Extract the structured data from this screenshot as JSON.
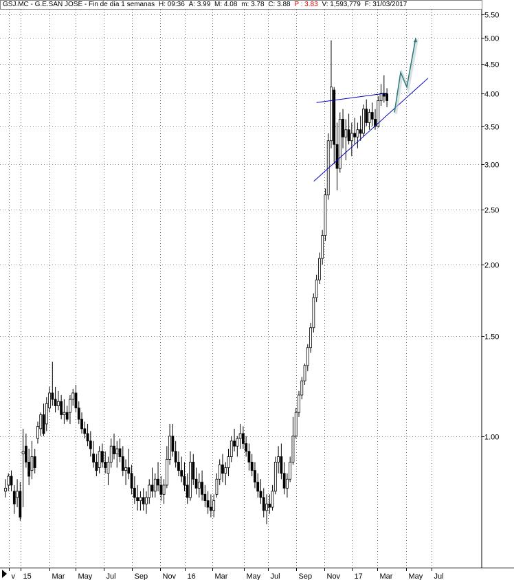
{
  "header": {
    "title": "GSJ.MC - G.E.SAN JOSE - Fin de día 1 semanas",
    "h": "H: 09:36",
    "a": "A: 3.99",
    "m_high": "M: 4.08",
    "m_low": "m: 3.78",
    "c": "C: 3.88",
    "p": "P : 3.83",
    "v": "V: 1,593,779",
    "f": "F: 31/03/2017"
  },
  "colors": {
    "up": "#ffffff",
    "down": "#000000",
    "trendline": "#0000c0",
    "projection": "#2a7a7a",
    "grid": "#000000"
  },
  "chart_data": {
    "type": "candlestick",
    "title": "GSJ.MC - G.E.SAN JOSE - Fin de día 1 semanas",
    "y_scale": "log",
    "y_ticks": [
      1.0,
      1.5,
      2.0,
      2.5,
      3.0,
      3.5,
      4.0,
      4.5,
      5.0,
      5.5
    ],
    "y_tick_labels": [
      "1.00",
      "1.50",
      "2.00",
      "2.50",
      "3.00",
      "3.50",
      "4.00",
      "4.50",
      "5.00",
      "5.50"
    ],
    "x_tick_labels": [
      "v",
      "15",
      "Mar",
      "May",
      "Jul",
      "Sep",
      "Nov",
      "16",
      "Mar",
      "May",
      "Jul",
      "Sep",
      "Nov",
      "17",
      "Mar",
      "May",
      "Jul"
    ],
    "last": {
      "open": 3.99,
      "high": 4.08,
      "low": 3.78,
      "close": 3.88
    },
    "trendlines": [
      {
        "name": "resistance",
        "from": [
          "2016-11",
          3.85
        ],
        "to": [
          "2017-03",
          4.0
        ]
      },
      {
        "name": "support",
        "from": [
          "2016-11",
          2.8
        ],
        "to": [
          "2017-06",
          4.25
        ]
      }
    ],
    "projection": [
      3.7,
      4.35,
      4.1,
      5.0
    ],
    "candles": [
      [
        0.8,
        0.84,
        0.78,
        0.81
      ],
      [
        0.82,
        0.86,
        0.8,
        0.85
      ],
      [
        0.85,
        0.87,
        0.8,
        0.82
      ],
      [
        0.8,
        0.82,
        0.73,
        0.76
      ],
      [
        0.78,
        0.84,
        0.75,
        0.8
      ],
      [
        0.8,
        0.83,
        0.71,
        0.72
      ],
      [
        0.93,
        1.03,
        0.75,
        0.94
      ],
      [
        0.96,
        1.01,
        0.88,
        0.9
      ],
      [
        0.9,
        0.95,
        0.82,
        0.85
      ],
      [
        0.87,
        0.98,
        0.84,
        0.92
      ],
      [
        0.92,
        0.95,
        0.86,
        0.88
      ],
      [
        0.99,
        1.06,
        0.97,
        1.04
      ],
      [
        1.03,
        1.1,
        1.0,
        1.09
      ],
      [
        1.09,
        1.14,
        1.0,
        1.01
      ],
      [
        1.05,
        1.17,
        1.02,
        1.14
      ],
      [
        1.12,
        1.22,
        1.1,
        1.19
      ],
      [
        1.19,
        1.35,
        1.13,
        1.16
      ],
      [
        1.16,
        1.22,
        1.1,
        1.13
      ],
      [
        1.13,
        1.2,
        1.11,
        1.15
      ],
      [
        1.15,
        1.18,
        1.07,
        1.09
      ],
      [
        1.09,
        1.16,
        1.05,
        1.1
      ],
      [
        1.1,
        1.13,
        1.06,
        1.07
      ],
      [
        1.1,
        1.18,
        1.05,
        1.16
      ],
      [
        1.16,
        1.21,
        1.13,
        1.19
      ],
      [
        1.19,
        1.23,
        1.1,
        1.12
      ],
      [
        1.12,
        1.15,
        1.05,
        1.07
      ],
      [
        1.07,
        1.1,
        1.01,
        1.03
      ],
      [
        1.03,
        1.06,
        0.99,
        1.01
      ],
      [
        1.01,
        1.05,
        0.96,
        0.98
      ],
      [
        0.98,
        1.02,
        0.92,
        0.95
      ],
      [
        0.93,
        0.98,
        0.88,
        0.9
      ],
      [
        0.9,
        0.93,
        0.85,
        0.87
      ],
      [
        0.88,
        0.96,
        0.86,
        0.94
      ],
      [
        0.94,
        0.97,
        0.88,
        0.9
      ],
      [
        0.9,
        0.94,
        0.86,
        0.88
      ],
      [
        0.86,
        0.92,
        0.82,
        0.9
      ],
      [
        0.9,
        0.99,
        0.88,
        0.96
      ],
      [
        0.96,
        1.01,
        0.91,
        0.93
      ],
      [
        0.93,
        0.98,
        0.88,
        0.95
      ],
      [
        0.95,
        0.99,
        0.9,
        0.92
      ],
      [
        0.92,
        0.96,
        0.85,
        0.87
      ],
      [
        0.87,
        0.91,
        0.82,
        0.88
      ],
      [
        0.88,
        0.95,
        0.84,
        0.86
      ],
      [
        0.86,
        0.89,
        0.79,
        0.81
      ],
      [
        0.81,
        0.85,
        0.76,
        0.78
      ],
      [
        0.78,
        0.82,
        0.74,
        0.77
      ],
      [
        0.77,
        0.8,
        0.74,
        0.78
      ],
      [
        0.78,
        0.81,
        0.74,
        0.76
      ],
      [
        0.76,
        0.8,
        0.73,
        0.78
      ],
      [
        0.78,
        0.84,
        0.76,
        0.82
      ],
      [
        0.82,
        0.88,
        0.78,
        0.8
      ],
      [
        0.8,
        0.86,
        0.78,
        0.84
      ],
      [
        0.84,
        0.9,
        0.8,
        0.82
      ],
      [
        0.82,
        0.85,
        0.77,
        0.79
      ],
      [
        0.79,
        0.84,
        0.76,
        0.82
      ],
      [
        0.82,
        0.96,
        0.81,
        0.91
      ],
      [
        0.91,
        1.05,
        0.89,
        1.0
      ],
      [
        1.0,
        1.05,
        0.92,
        0.94
      ],
      [
        0.94,
        0.98,
        0.88,
        0.9
      ],
      [
        0.9,
        0.94,
        0.85,
        0.87
      ],
      [
        0.87,
        0.92,
        0.83,
        0.85
      ],
      [
        0.85,
        0.9,
        0.8,
        0.82
      ],
      [
        0.82,
        0.86,
        0.76,
        0.78
      ],
      [
        0.78,
        0.94,
        0.77,
        0.9
      ],
      [
        0.9,
        0.93,
        0.82,
        0.84
      ],
      [
        0.84,
        0.88,
        0.79,
        0.81
      ],
      [
        0.81,
        0.86,
        0.78,
        0.83
      ],
      [
        0.83,
        0.87,
        0.77,
        0.79
      ],
      [
        0.79,
        0.82,
        0.75,
        0.77
      ],
      [
        0.77,
        0.8,
        0.73,
        0.75
      ],
      [
        0.75,
        0.79,
        0.72,
        0.74
      ],
      [
        0.74,
        0.79,
        0.72,
        0.77
      ],
      [
        0.79,
        0.86,
        0.78,
        0.84
      ],
      [
        0.84,
        0.91,
        0.82,
        0.89
      ],
      [
        0.89,
        0.93,
        0.83,
        0.86
      ],
      [
        0.86,
        0.9,
        0.82,
        0.88
      ],
      [
        0.88,
        0.95,
        0.85,
        0.92
      ],
      [
        0.92,
        1.0,
        0.9,
        0.98
      ],
      [
        0.98,
        1.03,
        0.94,
        0.96
      ],
      [
        0.96,
        1.0,
        0.92,
        0.99
      ],
      [
        0.99,
        1.05,
        0.95,
        1.01
      ],
      [
        1.01,
        1.04,
        0.95,
        0.97
      ],
      [
        0.97,
        1.0,
        0.92,
        0.94
      ],
      [
        0.94,
        0.97,
        0.87,
        0.9
      ],
      [
        0.9,
        0.93,
        0.85,
        0.87
      ],
      [
        0.87,
        0.9,
        0.81,
        0.83
      ],
      [
        0.83,
        0.86,
        0.78,
        0.8
      ],
      [
        0.8,
        0.84,
        0.76,
        0.78
      ],
      [
        0.78,
        0.81,
        0.72,
        0.74
      ],
      [
        0.74,
        0.79,
        0.7,
        0.76
      ],
      [
        0.76,
        0.79,
        0.73,
        0.75
      ],
      [
        0.75,
        0.82,
        0.74,
        0.8
      ],
      [
        0.8,
        0.92,
        0.79,
        0.9
      ],
      [
        0.9,
        0.96,
        0.86,
        0.92
      ],
      [
        0.92,
        0.97,
        0.84,
        0.86
      ],
      [
        0.86,
        0.9,
        0.79,
        0.81
      ],
      [
        0.81,
        0.86,
        0.78,
        0.84
      ],
      [
        0.84,
        0.92,
        0.83,
        0.9
      ],
      [
        0.9,
        1.08,
        0.89,
        1.0
      ],
      [
        1.0,
        1.12,
        0.99,
        1.1
      ],
      [
        1.1,
        1.2,
        1.08,
        1.18
      ],
      [
        1.18,
        1.27,
        1.16,
        1.25
      ],
      [
        1.25,
        1.34,
        1.23,
        1.33
      ],
      [
        1.33,
        1.45,
        1.3,
        1.43
      ],
      [
        1.43,
        1.58,
        1.4,
        1.55
      ],
      [
        1.55,
        1.78,
        1.52,
        1.75
      ],
      [
        1.75,
        1.92,
        1.72,
        1.88
      ],
      [
        1.88,
        2.1,
        1.85,
        2.05
      ],
      [
        2.05,
        2.3,
        2.0,
        2.25
      ],
      [
        2.25,
        2.72,
        2.2,
        2.65
      ],
      [
        2.65,
        3.4,
        2.6,
        3.3
      ],
      [
        3.3,
        4.95,
        3.2,
        4.1
      ],
      [
        4.05,
        4.1,
        3.0,
        3.25
      ],
      [
        3.25,
        3.55,
        2.7,
        2.95
      ],
      [
        2.95,
        3.7,
        2.9,
        3.6
      ],
      [
        3.6,
        3.75,
        3.2,
        3.35
      ],
      [
        3.35,
        3.6,
        3.05,
        3.45
      ],
      [
        3.45,
        3.68,
        3.25,
        3.3
      ],
      [
        3.3,
        3.55,
        3.1,
        3.4
      ],
      [
        3.4,
        3.62,
        3.25,
        3.35
      ],
      [
        3.35,
        3.55,
        3.2,
        3.45
      ],
      [
        3.45,
        3.65,
        3.3,
        3.4
      ],
      [
        3.4,
        3.82,
        3.35,
        3.75
      ],
      [
        3.75,
        3.9,
        3.5,
        3.55
      ],
      [
        3.55,
        3.75,
        3.45,
        3.7
      ],
      [
        3.7,
        3.85,
        3.5,
        3.6
      ],
      [
        3.6,
        3.75,
        3.45,
        3.5
      ],
      [
        3.5,
        3.95,
        3.48,
        3.88
      ],
      [
        3.88,
        4.15,
        3.8,
        4.0
      ],
      [
        4.0,
        4.3,
        3.85,
        3.95
      ],
      [
        3.99,
        4.08,
        3.78,
        3.88
      ]
    ]
  }
}
